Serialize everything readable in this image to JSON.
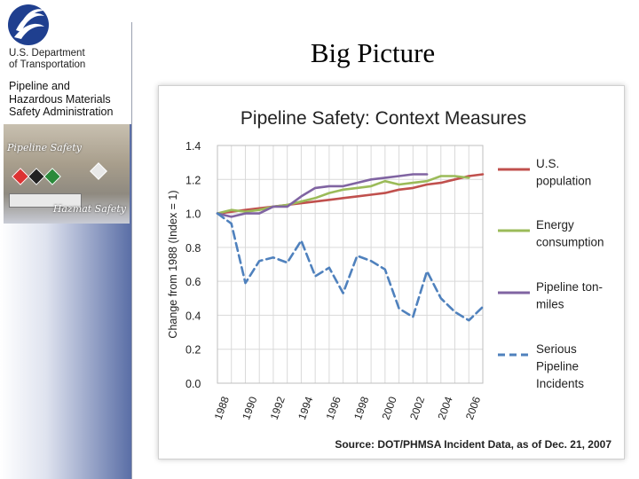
{
  "slide": {
    "title": "Big Picture"
  },
  "sidebar": {
    "dept_line1": "U.S. Department",
    "dept_line2": "of Transportation",
    "agency_line1": "Pipeline and",
    "agency_line2": "Hazardous Materials",
    "agency_line3": "Safety Administration",
    "image_label1": "Pipeline Safety",
    "image_label2": "Hazmat Safety"
  },
  "chart_data": {
    "type": "line",
    "title": "Pipeline Safety: Context Measures",
    "ylabel": "Change from 1988 (Index = 1)",
    "xlabel": "",
    "source": "Source:  DOT/PHMSA Incident Data, as of Dec. 21, 2007",
    "ylim": [
      0,
      1.4
    ],
    "yticks": [
      "0.0",
      "0.2",
      "0.4",
      "0.6",
      "0.8",
      "1.0",
      "1.2",
      "1.4"
    ],
    "ytick_values": [
      0,
      0.2,
      0.4,
      0.6,
      0.8,
      1.0,
      1.2,
      1.4
    ],
    "xlim": [
      1988,
      2007
    ],
    "xticks": [
      "1988",
      "1990",
      "1992",
      "1994",
      "1996",
      "1998",
      "2000",
      "2002",
      "2004",
      "2006"
    ],
    "x": [
      1988,
      1989,
      1990,
      1991,
      1992,
      1993,
      1994,
      1995,
      1996,
      1997,
      1998,
      1999,
      2000,
      2001,
      2002,
      2003,
      2004,
      2005,
      2006,
      2007
    ],
    "series": [
      {
        "name": "U.S. population",
        "color": "#c0504d",
        "dashed": false,
        "values": [
          1.0,
          1.01,
          1.02,
          1.03,
          1.04,
          1.05,
          1.06,
          1.07,
          1.08,
          1.09,
          1.1,
          1.11,
          1.12,
          1.14,
          1.15,
          1.17,
          1.18,
          1.2,
          1.22,
          1.23
        ]
      },
      {
        "name": "Energy consumption",
        "color": "#9bbb59",
        "dashed": false,
        "values": [
          1.0,
          1.02,
          1.01,
          1.02,
          1.04,
          1.05,
          1.07,
          1.09,
          1.12,
          1.14,
          1.15,
          1.16,
          1.19,
          1.17,
          1.18,
          1.19,
          1.22,
          1.22,
          1.21,
          null
        ]
      },
      {
        "name": "Pipeline ton-miles",
        "color": "#8064a2",
        "dashed": false,
        "values": [
          1.0,
          0.98,
          1.0,
          1.0,
          1.04,
          1.04,
          1.1,
          1.15,
          1.16,
          1.16,
          1.18,
          1.2,
          1.21,
          1.22,
          1.23,
          1.23,
          null,
          null,
          null,
          null
        ]
      },
      {
        "name": "Serious Pipeline Incidents",
        "color": "#4f81bd",
        "dashed": true,
        "values": [
          1.0,
          0.94,
          0.59,
          0.72,
          0.74,
          0.71,
          0.84,
          0.63,
          0.68,
          0.53,
          0.75,
          0.72,
          0.67,
          0.44,
          0.39,
          0.66,
          0.5,
          0.42,
          0.37,
          0.45
        ]
      }
    ],
    "legend": {
      "entries": [
        {
          "line1": "U.S.",
          "line2": "population"
        },
        {
          "line1": "Energy",
          "line2": "consumption"
        },
        {
          "line1": "Pipeline ton-",
          "line2": "miles"
        },
        {
          "line1": "Serious",
          "line2": "Pipeline",
          "line3": "Incidents"
        }
      ],
      "position": "right"
    },
    "grid": true
  }
}
